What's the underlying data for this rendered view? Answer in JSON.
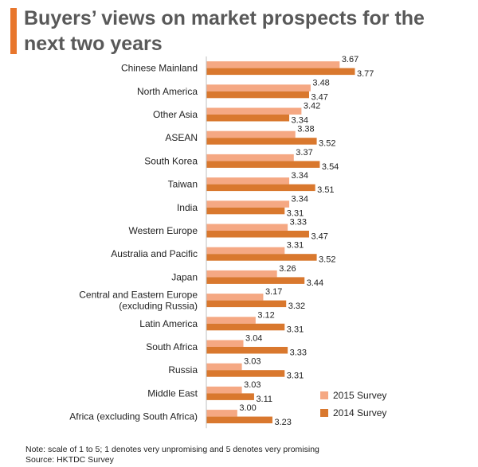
{
  "title": "Buyers’ views on market prospects for the next two years",
  "colors": {
    "accent": "#E8762C",
    "series_2015": "#F5A883",
    "series_2014": "#D9782E"
  },
  "chart_data": {
    "type": "bar",
    "orientation": "horizontal",
    "categories": [
      "Chinese Mainland",
      "North America",
      "Other Asia",
      "ASEAN",
      "South Korea",
      "Taiwan",
      "India",
      "Western Europe",
      "Australia and Pacific",
      "Japan",
      [
        "Central and Eastern Europe",
        "(excluding Russia)"
      ],
      "Latin America",
      "South Africa",
      "Russia",
      "Middle East",
      "Africa (excluding South Africa)"
    ],
    "series": [
      {
        "name": "2015 Survey",
        "color": "#F5A883",
        "values": [
          3.67,
          3.48,
          3.42,
          3.38,
          3.37,
          3.34,
          3.34,
          3.33,
          3.31,
          3.26,
          3.17,
          3.12,
          3.04,
          3.03,
          3.03,
          3.0
        ],
        "labels": [
          "3.67",
          "3.48",
          "3.42",
          "3.38",
          "3.37",
          "3.34",
          "3.34",
          "3.33",
          "3.31",
          "3.26",
          "3.17",
          "3.12",
          "3.04",
          "3.03",
          "3.03",
          "3.00"
        ]
      },
      {
        "name": "2014 Survey",
        "color": "#D9782E",
        "values": [
          3.77,
          3.47,
          3.34,
          3.52,
          3.54,
          3.51,
          3.31,
          3.47,
          3.52,
          3.44,
          3.32,
          3.31,
          3.33,
          3.31,
          3.11,
          3.23
        ],
        "labels": [
          "3.77",
          "3.47",
          "3.34",
          "3.52",
          "3.54",
          "3.51",
          "3.31",
          "3.47",
          "3.52",
          "3.44",
          "3.32",
          "3.31",
          "3.33",
          "3.31",
          "3.11",
          "3.23"
        ]
      }
    ],
    "xlim": [
      2.8,
      3.85
    ],
    "grid": false,
    "legend_position": "bottom-right"
  },
  "notes": {
    "note": "Note: scale of 1 to 5; 1 denotes very unpromising and 5 denotes very promising",
    "source": "Source: HKTDC  Survey"
  }
}
